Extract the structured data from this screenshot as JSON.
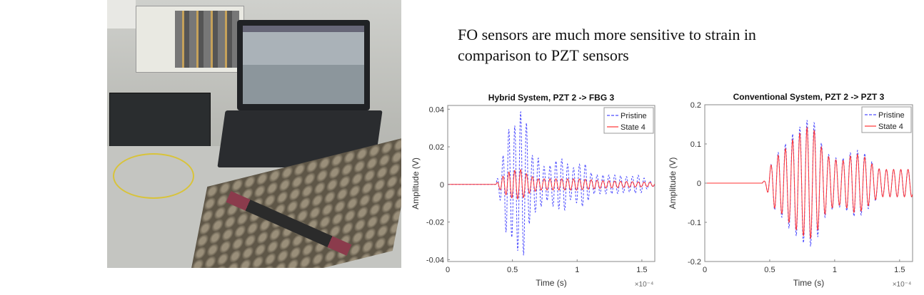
{
  "headline": {
    "line1": "FO sensors are much more sensitive to strain in",
    "line2": "comparison to PZT sensors"
  },
  "photo": {
    "description_icon": "lab-setup-photo"
  },
  "chart_data": [
    {
      "type": "line",
      "title": "Hybrid System, PZT 2 -> FBG 3",
      "xlabel": "Time (s)",
      "ylabel": "Amplitude (V)",
      "x_multiplier_label": "×10⁻⁴",
      "xlim": [
        0,
        1.6
      ],
      "ylim": [
        -0.041,
        0.042
      ],
      "xticks": [
        "0",
        "0.5",
        "1",
        "1.5"
      ],
      "xtick_values": [
        0,
        0.5,
        1,
        1.5
      ],
      "yticks": [
        "0.04",
        "0.02",
        "0",
        "-0.02",
        "-0.04"
      ],
      "ytick_values": [
        0.04,
        0.02,
        0,
        -0.02,
        -0.04
      ],
      "grid": false,
      "legend": "top-right",
      "series": [
        {
          "name": "Pristine",
          "color": "#4d4dff",
          "style": "dashed",
          "cycles_per_unit": 22,
          "envelope": [
            [
              0,
              0
            ],
            [
              0.37,
              0
            ],
            [
              0.42,
              0.012
            ],
            [
              0.46,
              0.03
            ],
            [
              0.5,
              0.028
            ],
            [
              0.56,
              0.039
            ],
            [
              0.6,
              0.037
            ],
            [
              0.64,
              0.016
            ],
            [
              0.7,
              0.014
            ],
            [
              0.76,
              0.008
            ],
            [
              0.82,
              0.012
            ],
            [
              0.9,
              0.014
            ],
            [
              0.95,
              0.008
            ],
            [
              1.05,
              0.012
            ],
            [
              1.12,
              0.005
            ],
            [
              1.2,
              0.005
            ],
            [
              1.3,
              0.005
            ],
            [
              1.4,
              0.004
            ],
            [
              1.48,
              0.005
            ],
            [
              1.55,
              0.002
            ],
            [
              1.6,
              0.001
            ]
          ]
        },
        {
          "name": "State 4",
          "color": "#ff3333",
          "style": "solid",
          "cycles_per_unit": 22,
          "envelope": [
            [
              0,
              0
            ],
            [
              0.37,
              0
            ],
            [
              0.42,
              0.004
            ],
            [
              0.48,
              0.007
            ],
            [
              0.57,
              0.008
            ],
            [
              0.62,
              0.005
            ],
            [
              0.7,
              0.003
            ],
            [
              0.85,
              0.003
            ],
            [
              1.0,
              0.003
            ],
            [
              1.2,
              0.002
            ],
            [
              1.6,
              0.001
            ]
          ]
        }
      ]
    },
    {
      "type": "line",
      "title": "Conventional System, PZT 2 -> PZT 3",
      "xlabel": "Time (s)",
      "ylabel": "Amplitude (V)",
      "x_multiplier_label": "×10⁻⁴",
      "xlim": [
        0,
        1.6
      ],
      "ylim": [
        -0.2,
        0.2
      ],
      "xticks": [
        "0",
        "0.5",
        "1",
        "1.5"
      ],
      "xtick_values": [
        0,
        0.5,
        1,
        1.5
      ],
      "yticks": [
        "0.2",
        "0.1",
        "0",
        "-0.1",
        "-0.2"
      ],
      "ytick_values": [
        0.2,
        0.1,
        0,
        -0.1,
        -0.2
      ],
      "grid": false,
      "legend": "top-right",
      "series": [
        {
          "name": "Pristine",
          "color": "#4d4dff",
          "style": "dashed",
          "cycles_per_unit": 18,
          "envelope": [
            [
              0,
              0
            ],
            [
              0.44,
              0
            ],
            [
              0.47,
              0.01
            ],
            [
              0.5,
              0.04
            ],
            [
              0.54,
              0.07
            ],
            [
              0.6,
              0.09
            ],
            [
              0.66,
              0.12
            ],
            [
              0.72,
              0.14
            ],
            [
              0.8,
              0.165
            ],
            [
              0.86,
              0.15
            ],
            [
              0.9,
              0.1
            ],
            [
              0.96,
              0.07
            ],
            [
              1.05,
              0.06
            ],
            [
              1.15,
              0.085
            ],
            [
              1.22,
              0.08
            ],
            [
              1.3,
              0.05
            ],
            [
              1.35,
              0.035
            ],
            [
              1.6,
              0.035
            ]
          ]
        },
        {
          "name": "State 4",
          "color": "#ff3333",
          "style": "solid",
          "cycles_per_unit": 18,
          "envelope": [
            [
              0,
              0
            ],
            [
              0.44,
              0
            ],
            [
              0.47,
              0.01
            ],
            [
              0.5,
              0.04
            ],
            [
              0.54,
              0.065
            ],
            [
              0.6,
              0.08
            ],
            [
              0.66,
              0.105
            ],
            [
              0.72,
              0.125
            ],
            [
              0.8,
              0.145
            ],
            [
              0.86,
              0.13
            ],
            [
              0.9,
              0.09
            ],
            [
              0.96,
              0.065
            ],
            [
              1.05,
              0.055
            ],
            [
              1.15,
              0.075
            ],
            [
              1.22,
              0.07
            ],
            [
              1.3,
              0.045
            ],
            [
              1.35,
              0.035
            ],
            [
              1.6,
              0.035
            ]
          ]
        }
      ]
    }
  ]
}
